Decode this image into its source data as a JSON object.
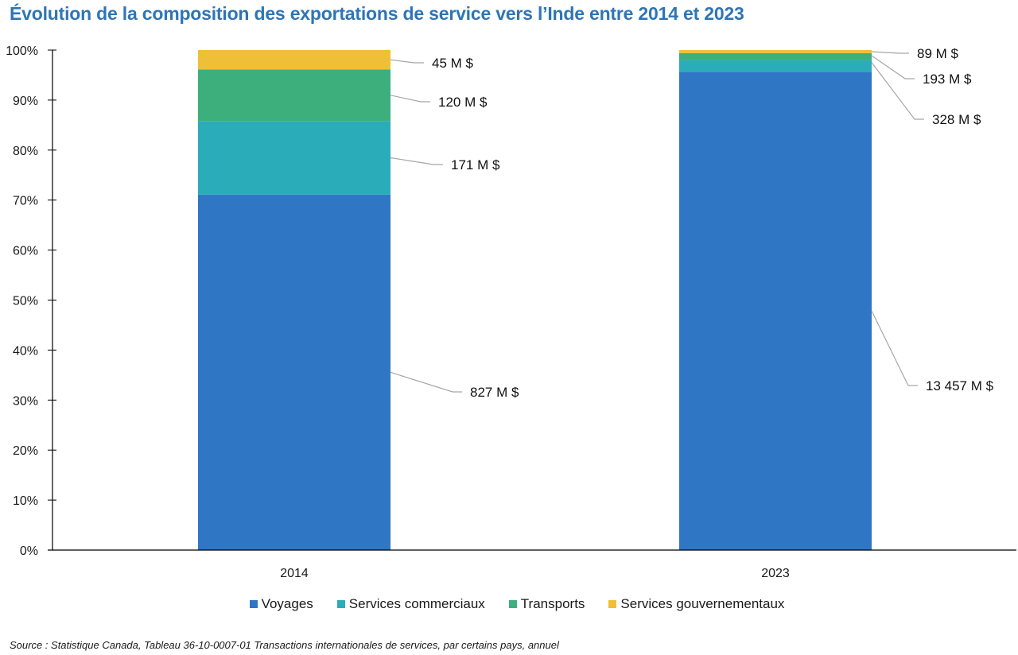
{
  "chart_data": {
    "type": "bar",
    "stacked": true,
    "normalized_percent": true,
    "title": "Évolution de la composition des exportations de service vers l’Inde entre 2014 et 2023",
    "xlabel": "",
    "ylabel": "",
    "ylim": [
      0,
      100
    ],
    "yticks": [
      "0%",
      "10%",
      "20%",
      "30%",
      "40%",
      "50%",
      "60%",
      "70%",
      "80%",
      "90%",
      "100%"
    ],
    "categories": [
      "2014",
      "2023"
    ],
    "series": [
      {
        "name": "Voyages",
        "color": "#2f77c4",
        "values": [
          827,
          13457
        ],
        "labels": [
          "827 M $",
          "13 457 M $"
        ]
      },
      {
        "name": "Services commerciaux",
        "color": "#2aadb8",
        "values": [
          171,
          328
        ],
        "labels": [
          "171 M $",
          "328 M $"
        ]
      },
      {
        "name": "Transports",
        "color": "#3daf7c",
        "values": [
          120,
          193
        ],
        "labels": [
          "120 M $",
          "193 M $"
        ]
      },
      {
        "name": "Services gouvernementaux",
        "color": "#f0bf38",
        "values": [
          45,
          89
        ],
        "labels": [
          "45 M $",
          "89 M $"
        ]
      }
    ],
    "unit": "M $",
    "grid": false,
    "legend_position": "bottom"
  },
  "source": "Source : Statistique Canada, Tableau 36-10-0007-01  Transactions internationales de services, par certains pays, annuel"
}
